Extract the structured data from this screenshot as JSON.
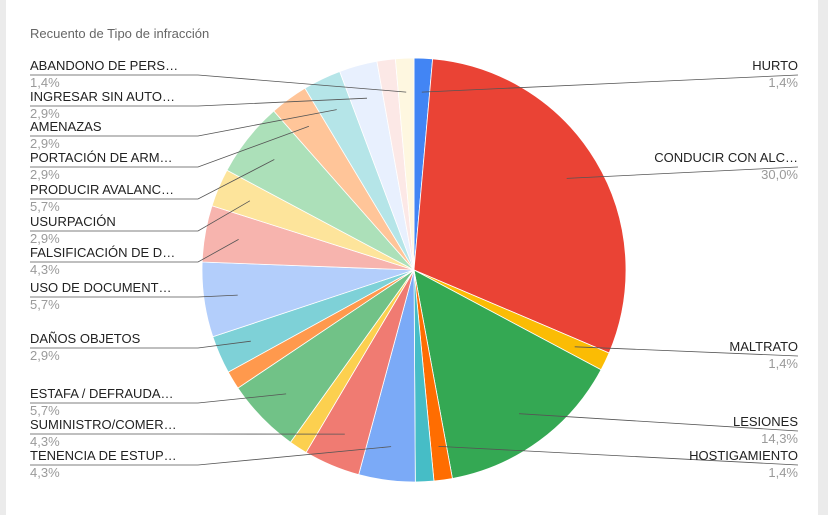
{
  "chart_data": {
    "type": "pie",
    "title": "Recuento de Tipo de infracción",
    "slices": [
      {
        "label": "HURTO",
        "percent_label": "1,4%",
        "value": 1.4,
        "color": "#4285f4"
      },
      {
        "label": "CONDUCIR CON ALC…",
        "percent_label": "30,0%",
        "value": 30.0,
        "color": "#ea4335"
      },
      {
        "label": "MALTRATO",
        "percent_label": "1,4%",
        "value": 1.4,
        "color": "#fbbc04"
      },
      {
        "label": "LESIONES",
        "percent_label": "14,3%",
        "value": 14.3,
        "color": "#34a853"
      },
      {
        "label": "HOSTIGAMIENTO",
        "percent_label": "1,4%",
        "value": 1.4,
        "color": "#ff6d01"
      },
      {
        "label": "",
        "percent_label": "",
        "value": 1.4,
        "color": "#46bdc6"
      },
      {
        "label": "TENENCIA DE ESTUP…",
        "percent_label": "4,3%",
        "value": 4.3,
        "color": "#7baaf7"
      },
      {
        "label": "SUMINISTRO/COMER…",
        "percent_label": "4,3%",
        "value": 4.3,
        "color": "#f07b72"
      },
      {
        "label": "",
        "percent_label": "",
        "value": 1.4,
        "color": "#fcd04f"
      },
      {
        "label": "ESTAFA / DEFRAUDA…",
        "percent_label": "5,7%",
        "value": 5.7,
        "color": "#71c287"
      },
      {
        "label": "",
        "percent_label": "",
        "value": 1.4,
        "color": "#ff994d"
      },
      {
        "label": "DAÑOS OBJETOS",
        "percent_label": "2,9%",
        "value": 2.9,
        "color": "#7ed1d7"
      },
      {
        "label": "USO DE DOCUMENT…",
        "percent_label": "5,7%",
        "value": 5.7,
        "color": "#b3cefb"
      },
      {
        "label": "FALSIFICACIÓN DE D…",
        "percent_label": "4,3%",
        "value": 4.3,
        "color": "#f7b4ae"
      },
      {
        "label": "USURPACIÓN",
        "percent_label": "2,9%",
        "value": 2.9,
        "color": "#fde49b"
      },
      {
        "label": "PRODUCIR AVALANC…",
        "percent_label": "5,7%",
        "value": 5.7,
        "color": "#ace0b9"
      },
      {
        "label": "PORTACIÓN DE ARM…",
        "percent_label": "2,9%",
        "value": 2.9,
        "color": "#ffc599"
      },
      {
        "label": "AMENAZAS",
        "percent_label": "2,9%",
        "value": 2.9,
        "color": "#b5e5e8"
      },
      {
        "label": "INGRESAR SIN AUTO…",
        "percent_label": "2,9%",
        "value": 2.9,
        "color": "#e8f0fe"
      },
      {
        "label": "",
        "percent_label": "",
        "value": 1.4,
        "color": "#fce8e6"
      },
      {
        "label": "ABANDONO DE PERS…",
        "percent_label": "1,4%",
        "value": 1.4,
        "color": "#fef7e0"
      }
    ]
  }
}
